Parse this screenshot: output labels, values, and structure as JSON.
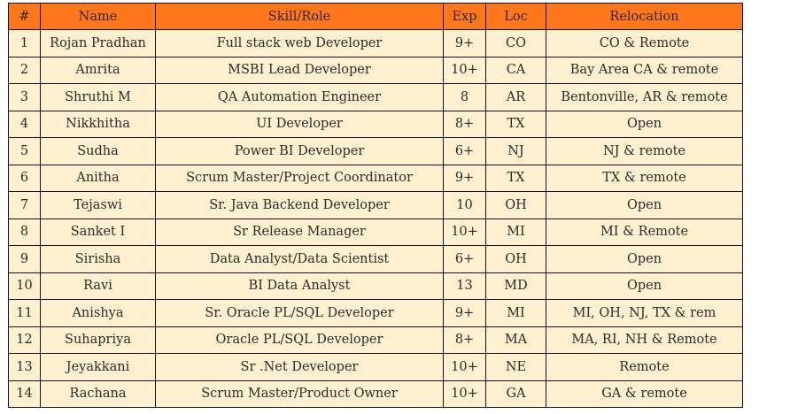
{
  "table": {
    "headers": {
      "num": "#",
      "name": "Name",
      "skill": "Skill/Role",
      "exp": "Exp",
      "loc": "Loc",
      "relocation": "Relocation"
    },
    "rows": [
      {
        "num": "1",
        "name": "Rojan Pradhan",
        "skill": "Full stack web Developer",
        "exp": "9+",
        "loc": "CO",
        "relocation": "CO & Remote"
      },
      {
        "num": "2",
        "name": "Amrita",
        "skill": "MSBI Lead Developer",
        "exp": "10+",
        "loc": "CA",
        "relocation": "Bay Area CA & remote"
      },
      {
        "num": "3",
        "name": "Shruthi M",
        "skill": "QA Automation Engineer",
        "exp": "8",
        "loc": "AR",
        "relocation": "Bentonville, AR & remote"
      },
      {
        "num": "4",
        "name": "Nikkhitha",
        "skill": "UI Developer",
        "exp": "8+",
        "loc": "TX",
        "relocation": "Open"
      },
      {
        "num": "5",
        "name": "Sudha",
        "skill": "Power BI Developer",
        "exp": "6+",
        "loc": "NJ",
        "relocation": "NJ & remote"
      },
      {
        "num": "6",
        "name": "Anitha",
        "skill": "Scrum Master/Project Coordinator",
        "exp": "9+",
        "loc": "TX",
        "relocation": "TX & remote"
      },
      {
        "num": "7",
        "name": "Tejaswi",
        "skill": "Sr. Java Backend Developer",
        "exp": "10",
        "loc": "OH",
        "relocation": "Open"
      },
      {
        "num": "8",
        "name": "Sanket I",
        "skill": "Sr Release Manager",
        "exp": "10+",
        "loc": "MI",
        "relocation": "MI & Remote"
      },
      {
        "num": "9",
        "name": "Sirisha",
        "skill": "Data Analyst/Data Scientist",
        "exp": "6+",
        "loc": "OH",
        "relocation": "Open"
      },
      {
        "num": "10",
        "name": "Ravi",
        "skill": "BI Data Analyst",
        "exp": "13",
        "loc": "MD",
        "relocation": "Open"
      },
      {
        "num": "11",
        "name": "Anishya",
        "skill": "Sr. Oracle PL/SQL Developer",
        "exp": "9+",
        "loc": "MI",
        "relocation": "MI, OH, NJ, TX & rem"
      },
      {
        "num": "12",
        "name": "Suhapriya",
        "skill": "Oracle PL/SQL Developer",
        "exp": "8+",
        "loc": "MA",
        "relocation": "MA, RI, NH & Remote"
      },
      {
        "num": "13",
        "name": "Jeyakkani",
        "skill": "Sr .Net Developer",
        "exp": "10+",
        "loc": "NE",
        "relocation": "Remote"
      },
      {
        "num": "14",
        "name": "Rachana",
        "skill": "Scrum Master/Product Owner",
        "exp": "10+",
        "loc": "GA",
        "relocation": "GA & remote"
      }
    ]
  },
  "colors": {
    "header_bg": "#ff761b",
    "row_bg": "#fff0cf",
    "border": "#111111",
    "text": "#2b2b2b"
  }
}
